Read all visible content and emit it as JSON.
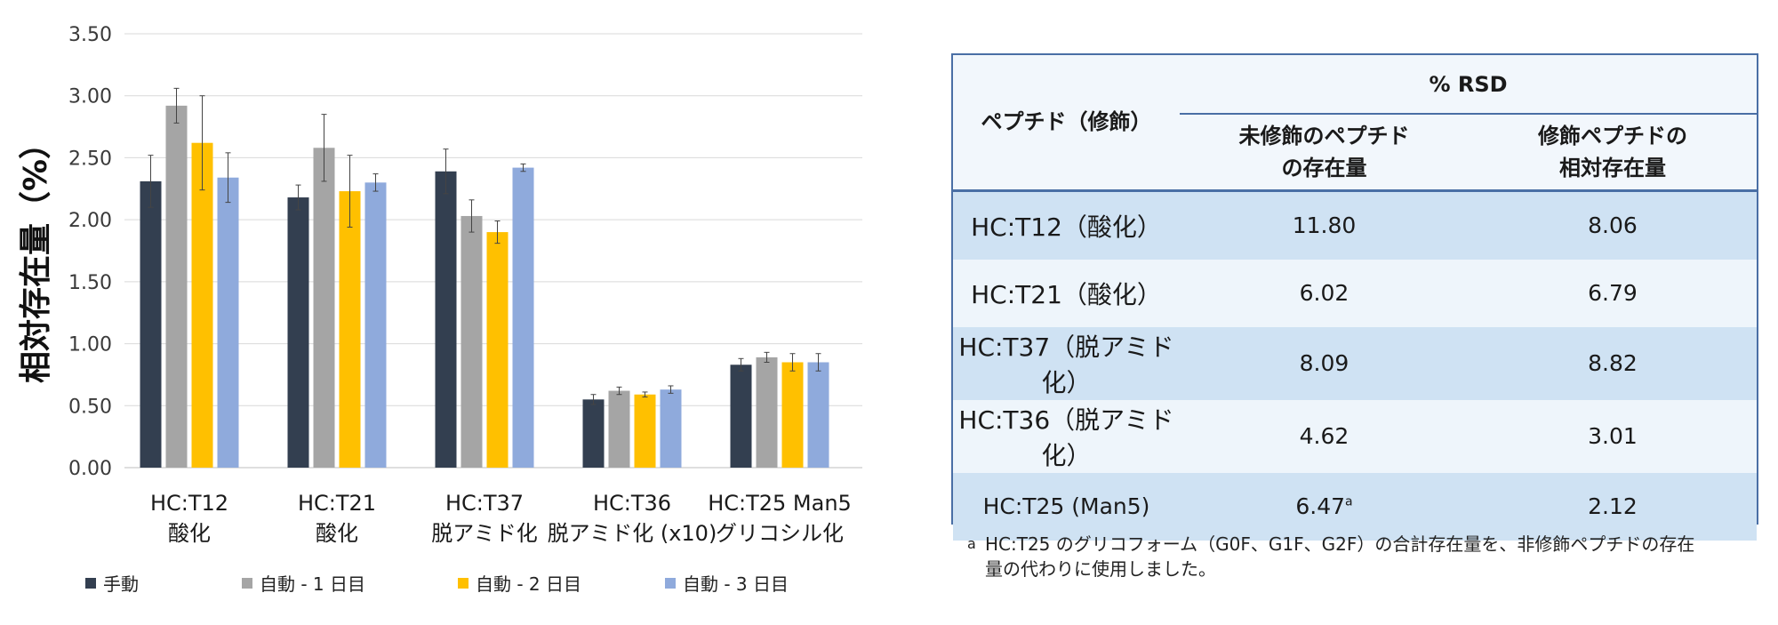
{
  "chart_data": {
    "type": "bar",
    "ylabel": "相対存在量（%）",
    "ylim": [
      0,
      3.5
    ],
    "yticks": [
      "3.50",
      "3.00",
      "2.50",
      "2.00",
      "1.50",
      "1.00",
      "0.50",
      "0.00"
    ],
    "categories": [
      [
        "HC:T12",
        "酸化"
      ],
      [
        "HC:T21",
        "酸化"
      ],
      [
        "HC:T37",
        "脱アミド化"
      ],
      [
        "HC:T36",
        "脱アミド化 (x10)"
      ],
      [
        "HC:T25 Man5",
        "グリコシル化"
      ]
    ],
    "series": [
      {
        "name": "手動",
        "color": "#333f50",
        "values": [
          2.31,
          2.18,
          2.39,
          0.55,
          0.83
        ],
        "errors": [
          0.21,
          0.1,
          0.18,
          0.04,
          0.05
        ]
      },
      {
        "name": "自動 - 1 日目",
        "color": "#a5a5a5",
        "values": [
          2.92,
          2.58,
          2.03,
          0.62,
          0.89
        ],
        "errors": [
          0.14,
          0.27,
          0.13,
          0.03,
          0.04
        ]
      },
      {
        "name": "自動 - 2 日目",
        "color": "#ffc000",
        "values": [
          2.62,
          2.23,
          1.9,
          0.59,
          0.85
        ],
        "errors": [
          0.38,
          0.29,
          0.09,
          0.02,
          0.07
        ]
      },
      {
        "name": "自動 - 3 日目",
        "color": "#8faadc",
        "values": [
          2.34,
          2.3,
          2.42,
          0.63,
          0.85
        ],
        "errors": [
          0.2,
          0.07,
          0.03,
          0.03,
          0.07
        ]
      }
    ],
    "grid": true,
    "legend": "bottom"
  },
  "table": {
    "header_peptide": "ペプチド（修飾）",
    "header_rsd": "% RSD",
    "header_col1_line1": "未修飾のペプチド",
    "header_col1_line2": "の存在量",
    "header_col2_line1": "修飾ペプチドの",
    "header_col2_line2": "相対存在量",
    "rows": [
      {
        "peptide": "HC:T12（酸化）",
        "unmod": "11.80",
        "mod": "8.06",
        "sup": ""
      },
      {
        "peptide": "HC:T21（酸化）",
        "unmod": "6.02",
        "mod": "6.79",
        "sup": ""
      },
      {
        "peptide": "HC:T37（脱アミド化）",
        "unmod": "8.09",
        "mod": "8.82",
        "sup": ""
      },
      {
        "peptide": "HC:T36（脱アミド化）",
        "unmod": "4.62",
        "mod": "3.01",
        "sup": ""
      },
      {
        "peptide": "HC:T25 (Man5)",
        "unmod": "6.47",
        "mod": "2.12",
        "sup": "a"
      }
    ]
  },
  "footnote": {
    "mark": "a",
    "line1": "HC:T25 のグリコフォーム（G0F、G1F、G2F）の合計存在量を、非修飾ペプチドの存在",
    "line2": "量の代わりに使用しました。"
  }
}
